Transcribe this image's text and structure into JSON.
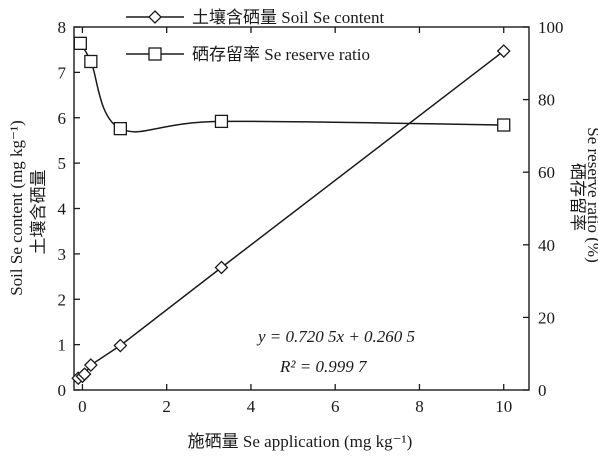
{
  "chart_data": {
    "type": "line",
    "xlabel": "施硒量  Se application (mg kg⁻¹)",
    "ylabel_left_en": "Soil Se content (mg kg⁻¹)",
    "ylabel_left_zh": "土壤含硒量",
    "ylabel_right_zh": "硒存留率",
    "ylabel_right_en": "Se reserve ratio (%)",
    "xlim": [
      -0.2,
      10.6
    ],
    "ylim_left": [
      0,
      8
    ],
    "ylim_right": [
      0,
      100
    ],
    "x_ticks": [
      "0",
      "2",
      "4",
      "6",
      "8",
      "10"
    ],
    "x_tick_values": [
      0,
      2,
      4,
      6,
      8,
      10
    ],
    "y_left_ticks": [
      "0",
      "1",
      "2",
      "3",
      "4",
      "5",
      "6",
      "7",
      "8"
    ],
    "y_left_tick_values": [
      0,
      1,
      2,
      3,
      4,
      5,
      6,
      7,
      8
    ],
    "y_right_ticks": [
      "0",
      "20",
      "40",
      "60",
      "80",
      "100"
    ],
    "y_right_tick_values": [
      0,
      20,
      40,
      60,
      80,
      100
    ],
    "series": [
      {
        "name": "土壤含硒量 Soil Se content",
        "axis": "left",
        "marker": "diamond",
        "x": [
          -0.1,
          0.0,
          0.05,
          0.2,
          0.9,
          3.3,
          10.0
        ],
        "y": [
          0.26,
          0.3,
          0.35,
          0.55,
          0.98,
          2.7,
          7.47
        ]
      },
      {
        "name": "硒存留率 Se reserve ratio",
        "axis": "right",
        "marker": "square",
        "x": [
          -0.05,
          0.2,
          0.9,
          3.3,
          10.0
        ],
        "y": [
          95.5,
          90.5,
          72.0,
          74.0,
          73.0
        ]
      }
    ],
    "annotations": {
      "equation": "y = 0.720 5x + 0.260 5",
      "r_squared": "R² = 0.999 7"
    },
    "legend_position": "top-center",
    "grid": false
  }
}
